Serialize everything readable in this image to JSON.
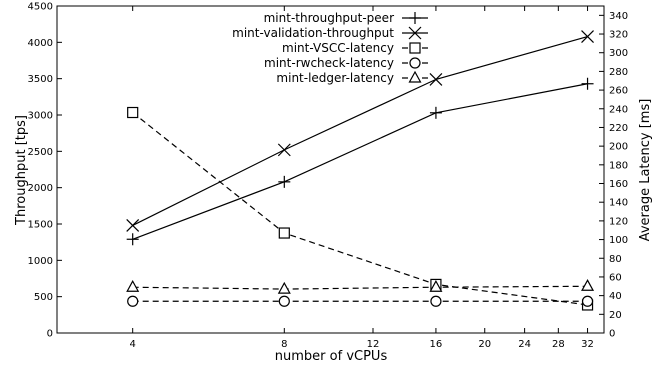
{
  "chart_data": {
    "type": "line",
    "xlabel": "number of vCPUs",
    "ylabel": "Throughput [tps]",
    "y2label": "Average Latency [ms]",
    "x_ticks": [
      4,
      8,
      12,
      16,
      20,
      24,
      28,
      32
    ],
    "x_scale": "log2",
    "xlim": [
      2.83,
      34.5
    ],
    "y_ticks": [
      0,
      500,
      1000,
      1500,
      2000,
      2500,
      3000,
      3500,
      4000,
      4500
    ],
    "ylim": [
      0,
      4500
    ],
    "y2_ticks": [
      0,
      20,
      40,
      60,
      80,
      100,
      120,
      140,
      160,
      180,
      200,
      220,
      240,
      260,
      280,
      300,
      320,
      340
    ],
    "y2lim": [
      0,
      350
    ],
    "legend_position": "top-right",
    "grid": false,
    "series": [
      {
        "name": "mint-throughput-peer",
        "axis": "left",
        "marker": "plus",
        "dash": "solid",
        "x": [
          4,
          8,
          16,
          32
        ],
        "values": [
          1290,
          2080,
          3030,
          3430
        ]
      },
      {
        "name": "mint-validation-throughput",
        "axis": "left",
        "marker": "x",
        "dash": "solid",
        "x": [
          4,
          8,
          16,
          32
        ],
        "values": [
          1480,
          2520,
          3490,
          4080
        ]
      },
      {
        "name": "mint-VSCC-latency",
        "axis": "right",
        "marker": "square",
        "dash": "dashed",
        "x": [
          4,
          8,
          16,
          32
        ],
        "values": [
          236,
          107,
          52,
          30
        ]
      },
      {
        "name": "mint-rwcheck-latency",
        "axis": "right",
        "marker": "circle",
        "dash": "dashed",
        "x": [
          4,
          8,
          16,
          32
        ],
        "values": [
          34,
          34,
          34,
          34
        ]
      },
      {
        "name": "mint-ledger-latency",
        "axis": "right",
        "marker": "triangle",
        "dash": "dashed",
        "x": [
          4,
          8,
          16,
          32
        ],
        "values": [
          49,
          47,
          49,
          50
        ]
      }
    ]
  }
}
